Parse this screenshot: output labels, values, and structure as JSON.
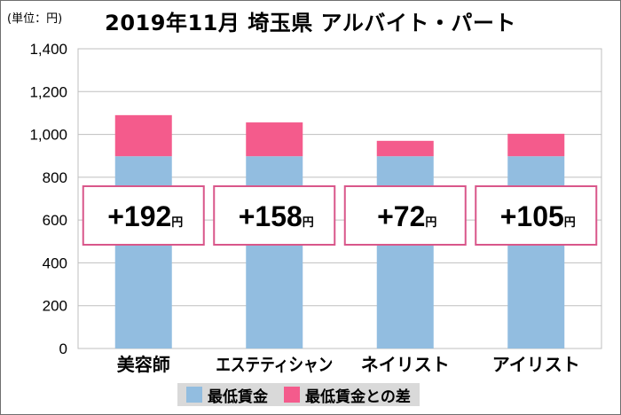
{
  "chart_data": {
    "type": "bar",
    "title": "2019年11月 埼玉県 アルバイト・パート",
    "unit_label": "(単位：円)",
    "categories": [
      "美容師",
      "エステティシャン",
      "ネイリスト",
      "アイリスト"
    ],
    "series": [
      {
        "name": "最低賃金",
        "values": [
          898,
          898,
          898,
          898
        ],
        "color": "#92bde0"
      },
      {
        "name": "最低賃金との差",
        "values": [
          192,
          158,
          72,
          105
        ],
        "color": "#f45b8c"
      }
    ],
    "callouts": [
      "+192",
      "+158",
      "+72",
      "+105"
    ],
    "callout_unit": "円",
    "ylim": [
      0,
      1400
    ],
    "yticks": [
      0,
      200,
      400,
      600,
      800,
      1000,
      1200,
      1400
    ],
    "ytick_labels": [
      "0",
      "200",
      "400",
      "600",
      "800",
      "1,000",
      "1,200",
      "1,400"
    ],
    "grid": true,
    "legend_position": "bottom"
  }
}
